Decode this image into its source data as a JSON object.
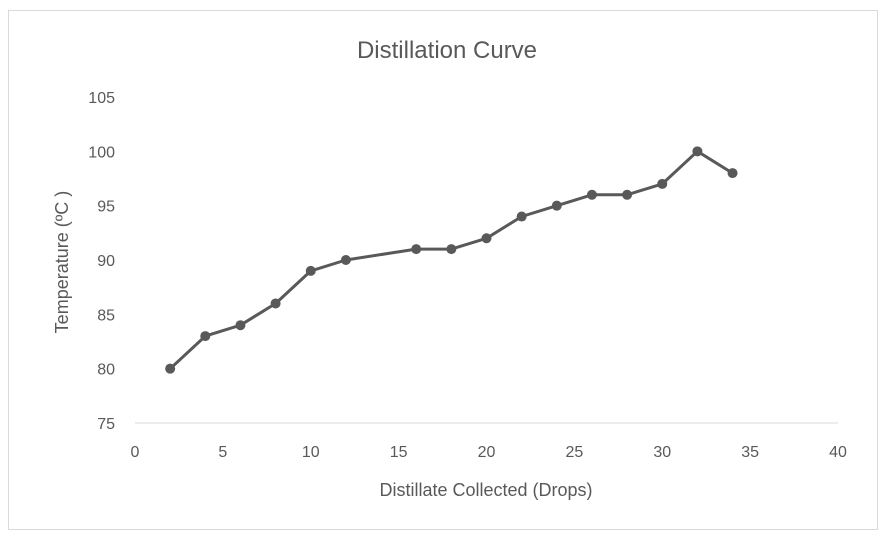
{
  "chart_data": {
    "type": "line",
    "title": "Distillation Curve",
    "xlabel": "Distillate Collected (Drops)",
    "ylabel": "Temperature (ºC )",
    "xlim": [
      0,
      40
    ],
    "ylim": [
      75,
      105
    ],
    "x_ticks": [
      0,
      5,
      10,
      15,
      20,
      25,
      30,
      35,
      40
    ],
    "y_ticks": [
      75,
      80,
      85,
      90,
      95,
      100,
      105
    ],
    "grid": false,
    "legend": "none",
    "colors": {
      "series": "#595959",
      "axis": "#d9d9d9",
      "text": "#595959"
    },
    "series": [
      {
        "name": "Temperature",
        "x": [
          2,
          4,
          6,
          8,
          10,
          12,
          16,
          18,
          20,
          22,
          24,
          26,
          28,
          30,
          32,
          34
        ],
        "y": [
          80,
          83,
          84,
          86,
          89,
          90,
          91,
          91,
          92,
          94,
          95,
          96,
          96,
          97,
          100,
          98
        ]
      }
    ]
  }
}
